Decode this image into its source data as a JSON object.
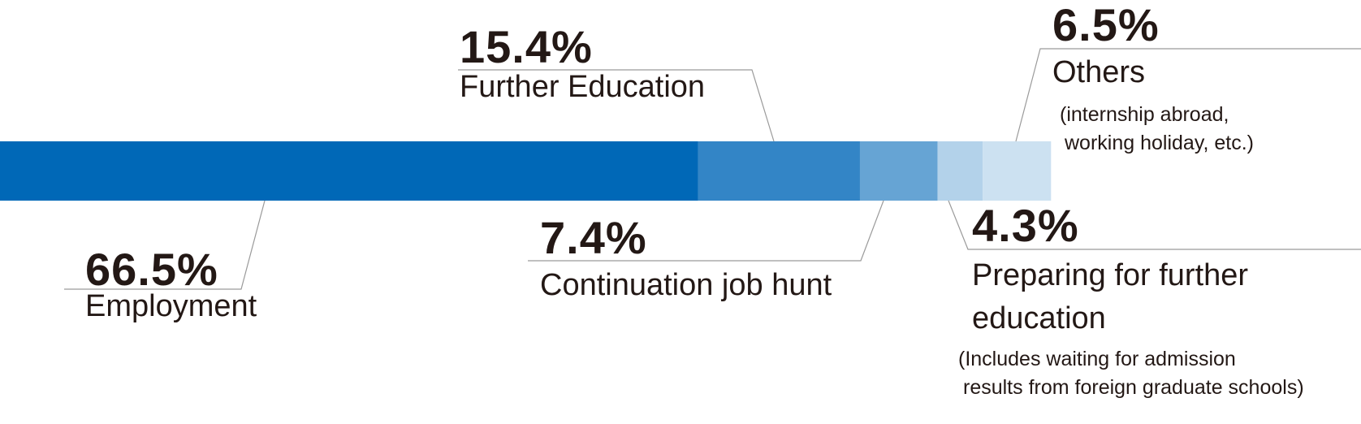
{
  "chart_data": {
    "type": "stacked-bar",
    "categories": [
      "Employment",
      "Further Education",
      "Continuation job hunt",
      "Preparing for further education",
      "Others"
    ],
    "values": [
      66.5,
      15.4,
      7.4,
      4.3,
      6.5
    ],
    "value_labels": [
      "66.5%",
      "15.4%",
      "7.4%",
      "4.3%",
      "6.5%"
    ],
    "colors": [
      "#0068b7",
      "#3385c6",
      "#66a4d4",
      "#b3d2ea",
      "#cce1f1"
    ],
    "notes": [
      null,
      null,
      null,
      [
        "(Includes waiting for admission",
        "results from foreign graduate schools)"
      ],
      [
        "(internship abroad,",
        "working holiday, etc.)"
      ]
    ]
  }
}
